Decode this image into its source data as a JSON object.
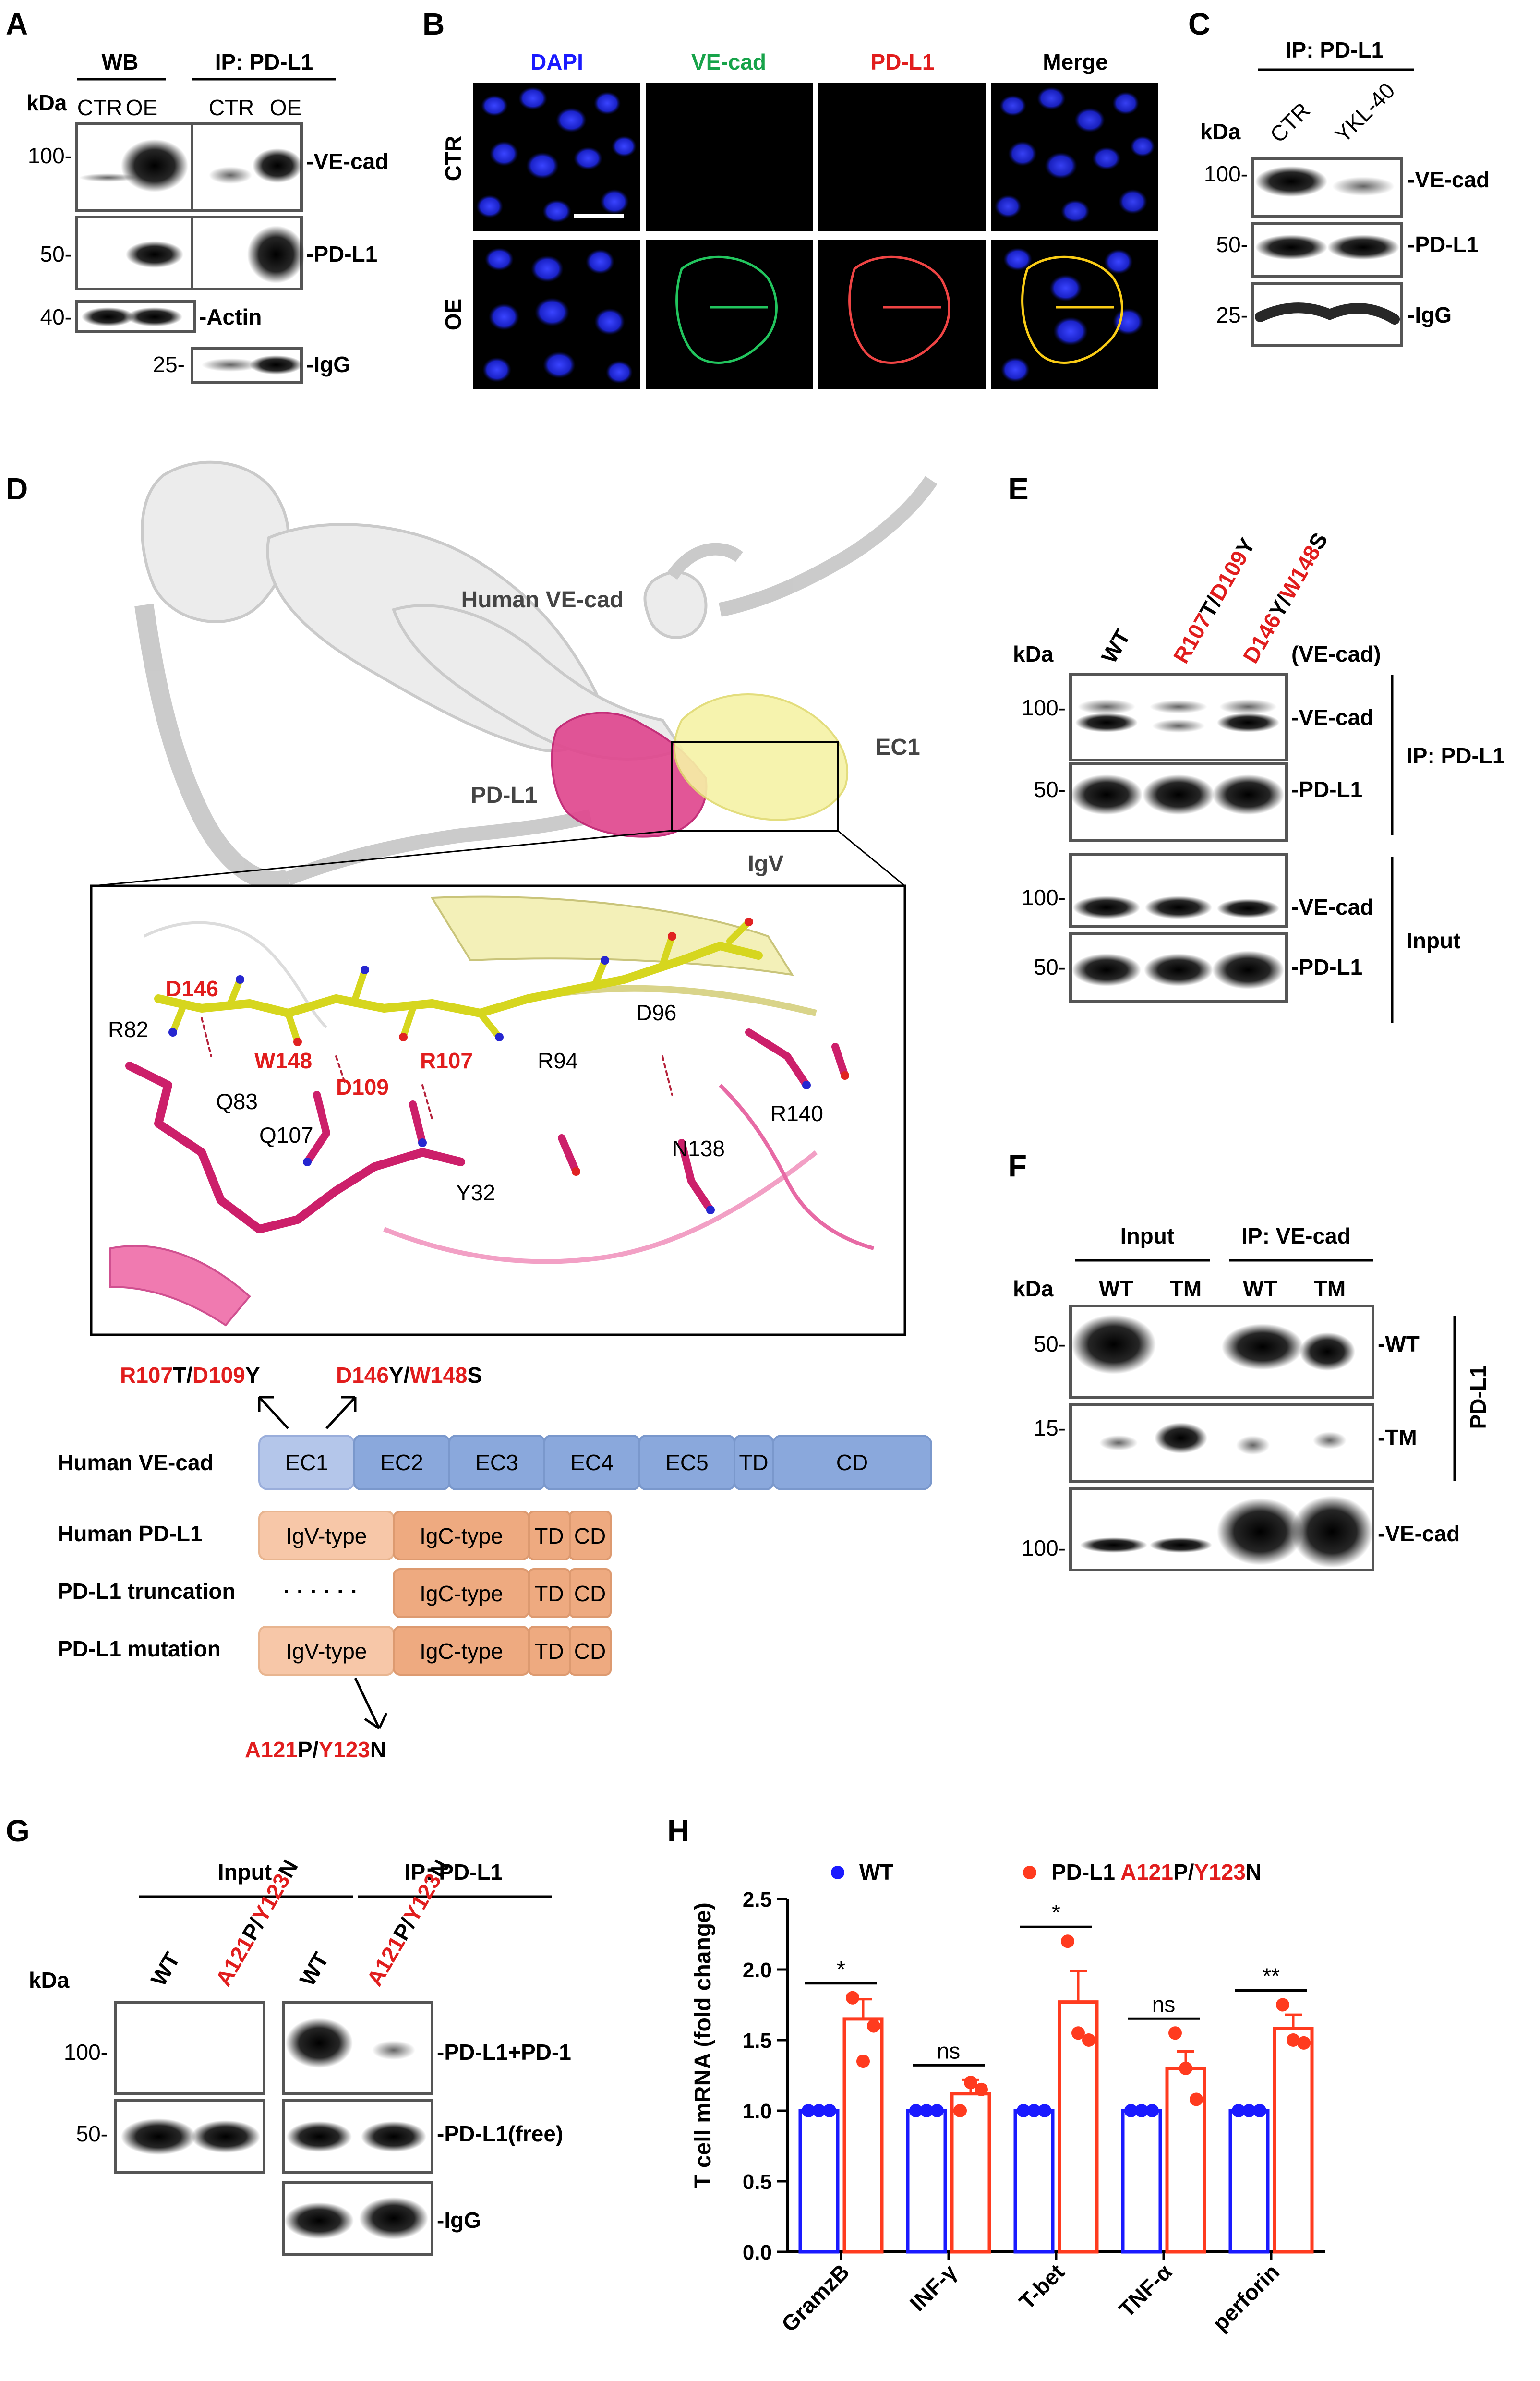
{
  "panels": {
    "A": {
      "letter": "A",
      "kda": "kDa",
      "group_wb": "WB",
      "group_ip": "IP: PD-L1",
      "lanes": [
        "CTR",
        "OE",
        "CTR",
        "OE"
      ],
      "markers": [
        "100-",
        "50-",
        "40-",
        "25-"
      ],
      "labels": [
        "-VE-cad",
        "-PD-L1",
        "-Actin",
        "-IgG"
      ]
    },
    "B": {
      "letter": "B",
      "columns": [
        "DAPI",
        "VE-cad",
        "PD-L1",
        "Merge"
      ],
      "rows": [
        "CTR",
        "OE"
      ],
      "colors": {
        "DAPI": "#1a1aff",
        "VE-cad": "#17a34a",
        "PD-L1": "#e11d1d",
        "Merge": "#000000"
      }
    },
    "C": {
      "letter": "C",
      "group": "IP: PD-L1",
      "kda": "kDa",
      "lanes": [
        "CTR",
        "YKL-40"
      ],
      "markers": [
        "100-",
        "50-",
        "25-"
      ],
      "labels": [
        "-VE-cad",
        "-PD-L1",
        "-IgG"
      ]
    },
    "D": {
      "letter": "D",
      "struct_labels": {
        "vecad": "Human VE-cad",
        "pdl1": "PD-L1",
        "ec1": "EC1",
        "igv": "IgV"
      },
      "residues_red": [
        "D146",
        "W148",
        "D109",
        "R107"
      ],
      "residues_black": [
        "R82",
        "Q83",
        "Q107",
        "Y32",
        "R94",
        "D96",
        "N138",
        "R140"
      ],
      "mut1": {
        "a": "R107",
        "b": "T/",
        "c": "D109",
        "d": "Y"
      },
      "mut2": {
        "a": "D146",
        "b": "Y/",
        "c": "W148",
        "d": "S"
      },
      "vecad_label": "Human VE-cad",
      "vecad_domains": [
        "EC1",
        "EC2",
        "EC3",
        "EC4",
        "EC5",
        "TD",
        "CD"
      ],
      "pdl1_label": "Human PD-L1",
      "trunc_label": "PD-L1 truncation",
      "trunc_dots": "· · · · · ·",
      "mut_label": "PD-L1 mutation",
      "pdl1_domains": [
        "IgV-type",
        "IgC-type",
        "TD",
        "CD"
      ],
      "pdmut": {
        "a": "A121",
        "b": "P/",
        "c": "Y123",
        "d": "N"
      }
    },
    "E": {
      "letter": "E",
      "kda": "kDa",
      "lane_wt": "WT",
      "lane2": {
        "a": "R107",
        "b": "T/",
        "c": "D109",
        "d": "Y"
      },
      "lane3": {
        "a": "D146",
        "b": "Y/",
        "c": "W148",
        "d": "S"
      },
      "tag": "(VE-cad)",
      "markers": [
        "100-",
        "50-",
        "100-",
        "50-"
      ],
      "labels": [
        "-VE-cad",
        "-PD-L1",
        "-VE-cad",
        "-PD-L1"
      ],
      "group_ip": "IP: PD-L1",
      "group_input": "Input"
    },
    "F": {
      "letter": "F",
      "kda": "kDa",
      "group_input": "Input",
      "group_ip": "IP: VE-cad",
      "lanes": [
        "WT",
        "TM",
        "WT",
        "TM"
      ],
      "markers": [
        "50-",
        "15-",
        "100-"
      ],
      "labels": [
        "-WT",
        "-TM",
        "-VE-cad"
      ],
      "side": "PD-L1"
    },
    "G": {
      "letter": "G",
      "kda": "kDa",
      "group_input": "Input",
      "group_ip": "IP: PD-L1",
      "lane_wt": "WT",
      "lane_mut": {
        "a": "A121",
        "b": "P/",
        "c": "Y123",
        "d": "N"
      },
      "markers": [
        "100-",
        "50-"
      ],
      "labels": [
        "-PD-L1+PD-1",
        "-PD-L1(free)",
        "-IgG"
      ]
    },
    "H": {
      "letter": "H",
      "legend_wt": "WT",
      "legend_mut": {
        "prefix": "PD-L1 ",
        "a": "A121",
        "b": "P/",
        "c": "Y123",
        "d": "N"
      },
      "sig": [
        "*",
        "ns",
        "*",
        "ns",
        "**"
      ]
    }
  },
  "chart_data": {
    "type": "bar",
    "title": "",
    "xlabel": "",
    "ylabel": "T cell mRNA (fold change)",
    "ylim": [
      0,
      2.5
    ],
    "yticks": [
      0.0,
      0.5,
      1.0,
      1.5,
      2.0,
      2.5
    ],
    "categories": [
      "GramzB",
      "INF-γ",
      "T-bet",
      "TNF-α",
      "perforin"
    ],
    "series": [
      {
        "name": "WT",
        "color": "#1a1aff",
        "values": [
          1.0,
          1.0,
          1.0,
          1.0,
          1.0
        ],
        "sem": [
          0,
          0,
          0,
          0,
          0
        ],
        "points": [
          [
            1.0,
            1.0,
            1.0
          ],
          [
            1.0,
            1.0,
            1.0
          ],
          [
            1.0,
            1.0,
            1.0
          ],
          [
            1.0,
            1.0,
            1.0
          ],
          [
            1.0,
            1.0,
            1.0
          ]
        ]
      },
      {
        "name": "PD-L1 A121P/Y123N",
        "color": "#ff3b1f",
        "values": [
          1.65,
          1.12,
          1.77,
          1.3,
          1.58
        ],
        "sem": [
          0.14,
          0.1,
          0.22,
          0.12,
          0.1
        ],
        "points": [
          [
            1.8,
            1.35,
            1.6
          ],
          [
            1.0,
            1.2,
            1.15
          ],
          [
            2.2,
            1.55,
            1.5
          ],
          [
            1.55,
            1.3,
            1.08
          ],
          [
            1.75,
            1.5,
            1.48
          ]
        ]
      }
    ],
    "legend": "top",
    "grid": false
  }
}
